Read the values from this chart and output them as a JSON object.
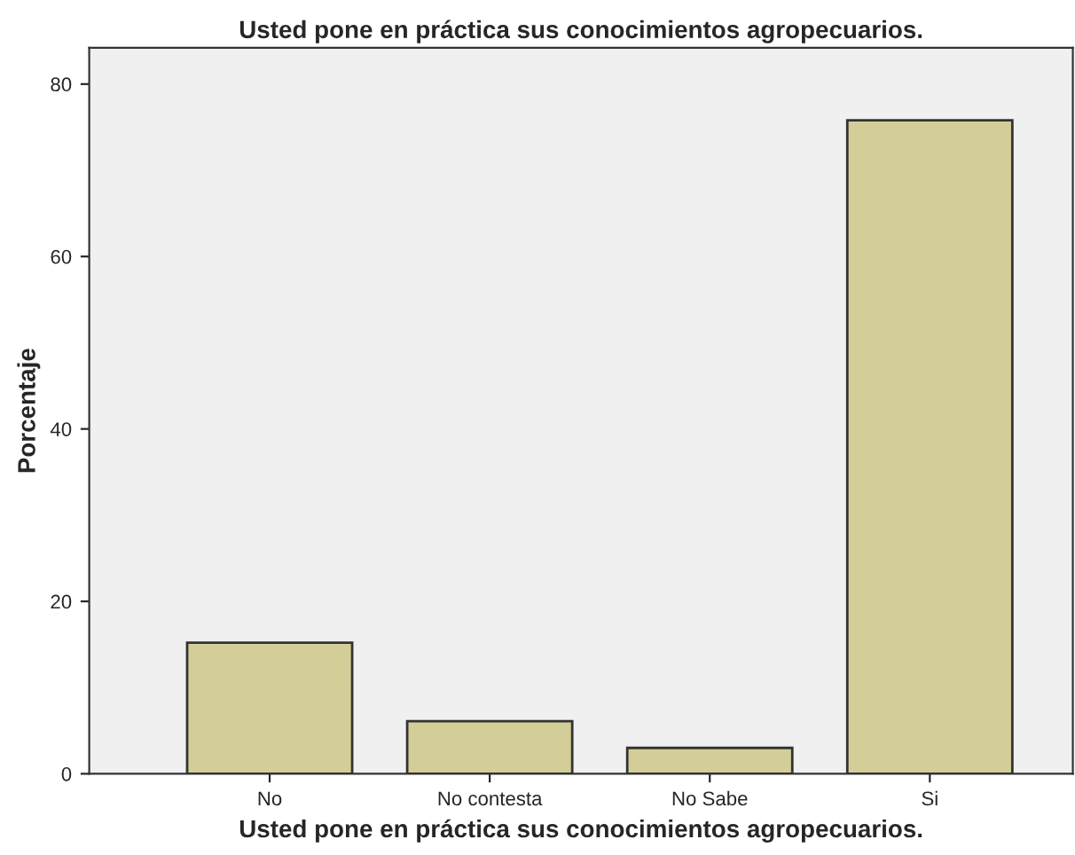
{
  "chart_data": {
    "type": "bar",
    "title": "Usted pone en práctica sus conocimientos agropecuarios.",
    "xlabel": "Usted pone en práctica sus conocimientos agropecuarios.",
    "ylabel": "Porcentaje",
    "categories": [
      "No",
      "No contesta",
      "No Sabe",
      "Si"
    ],
    "values": [
      15.2,
      6.1,
      3.0,
      75.8
    ],
    "color": "#d3ce97",
    "ylim": [
      0,
      84.2
    ],
    "yticks": [
      0,
      20,
      40,
      60,
      80
    ],
    "grid": false
  }
}
